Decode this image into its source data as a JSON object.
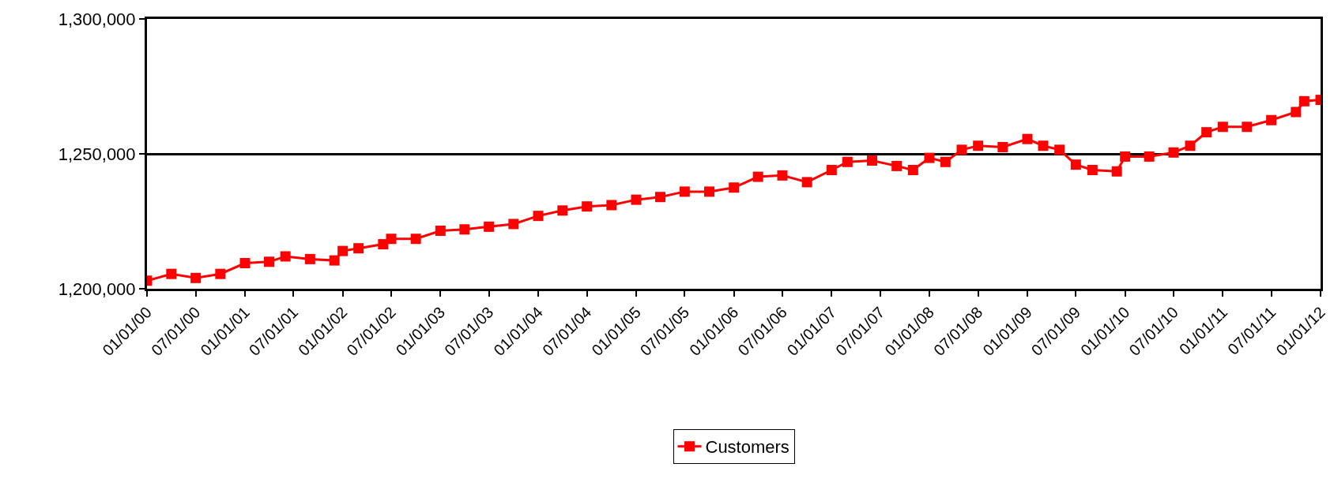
{
  "chart_data": {
    "type": "line",
    "x": [
      "2000-01-01",
      "2000-04-01",
      "2000-07-01",
      "2000-10-01",
      "2001-01-01",
      "2001-04-01",
      "2001-06-01",
      "2001-09-01",
      "2001-12-01",
      "2002-01-01",
      "2002-03-01",
      "2002-06-01",
      "2002-07-01",
      "2002-10-01",
      "2003-01-01",
      "2003-04-01",
      "2003-07-01",
      "2003-10-01",
      "2004-01-01",
      "2004-04-01",
      "2004-07-01",
      "2004-10-01",
      "2005-01-01",
      "2005-04-01",
      "2005-07-01",
      "2005-10-01",
      "2006-01-01",
      "2006-04-01",
      "2006-07-01",
      "2006-10-01",
      "2007-01-01",
      "2007-03-01",
      "2007-06-01",
      "2007-09-01",
      "2007-11-01",
      "2008-01-01",
      "2008-03-01",
      "2008-05-01",
      "2008-07-01",
      "2008-10-01",
      "2009-01-01",
      "2009-03-01",
      "2009-05-01",
      "2009-07-01",
      "2009-09-01",
      "2009-12-01",
      "2010-01-01",
      "2010-04-01",
      "2010-07-01",
      "2010-09-01",
      "2010-11-01",
      "2011-01-01",
      "2011-04-01",
      "2011-07-01",
      "2011-10-01",
      "2011-11-01",
      "2012-01-01"
    ],
    "series": [
      {
        "name": "Customers",
        "color": "#ff0000",
        "values": [
          1203000,
          1205500,
          1204000,
          1205500,
          1209500,
          1210000,
          1212000,
          1211000,
          1210500,
          1214000,
          1215000,
          1216500,
          1218500,
          1218500,
          1221500,
          1222000,
          1223000,
          1224000,
          1227000,
          1229000,
          1230500,
          1231000,
          1233000,
          1234000,
          1236000,
          1236000,
          1237500,
          1241500,
          1242000,
          1239500,
          1244000,
          1247000,
          1247500,
          1245500,
          1244000,
          1248500,
          1247000,
          1251500,
          1253000,
          1252500,
          1255500,
          1253000,
          1251500,
          1246000,
          1244000,
          1243500,
          1249000,
          1249000,
          1250500,
          1253000,
          1258000,
          1260000,
          1260000,
          1262500,
          1265500,
          1269500,
          1270000
        ]
      }
    ],
    "xlim": [
      "2000-01-01",
      "2012-01-01"
    ],
    "xticks": [
      {
        "value": "2000-01-01",
        "label": "01/01/00"
      },
      {
        "value": "2000-07-01",
        "label": "07/01/00"
      },
      {
        "value": "2001-01-01",
        "label": "01/01/01"
      },
      {
        "value": "2001-07-01",
        "label": "07/01/01"
      },
      {
        "value": "2002-01-01",
        "label": "01/01/02"
      },
      {
        "value": "2002-07-01",
        "label": "07/01/02"
      },
      {
        "value": "2003-01-01",
        "label": "01/01/03"
      },
      {
        "value": "2003-07-01",
        "label": "07/01/03"
      },
      {
        "value": "2004-01-01",
        "label": "01/01/04"
      },
      {
        "value": "2004-07-01",
        "label": "07/01/04"
      },
      {
        "value": "2005-01-01",
        "label": "01/01/05"
      },
      {
        "value": "2005-07-01",
        "label": "07/01/05"
      },
      {
        "value": "2006-01-01",
        "label": "01/01/06"
      },
      {
        "value": "2006-07-01",
        "label": "07/01/06"
      },
      {
        "value": "2007-01-01",
        "label": "01/01/07"
      },
      {
        "value": "2007-07-01",
        "label": "07/01/07"
      },
      {
        "value": "2008-01-01",
        "label": "01/01/08"
      },
      {
        "value": "2008-07-01",
        "label": "07/01/08"
      },
      {
        "value": "2009-01-01",
        "label": "01/01/09"
      },
      {
        "value": "2009-07-01",
        "label": "07/01/09"
      },
      {
        "value": "2010-01-01",
        "label": "01/01/10"
      },
      {
        "value": "2010-07-01",
        "label": "07/01/10"
      },
      {
        "value": "2011-01-01",
        "label": "01/01/11"
      },
      {
        "value": "2011-07-01",
        "label": "07/01/11"
      },
      {
        "value": "2012-01-01",
        "label": "01/01/12"
      }
    ],
    "ylim": [
      1200000,
      1300000
    ],
    "yticks": [
      {
        "value": 1200000,
        "label": "1,200,000"
      },
      {
        "value": 1250000,
        "label": "1,250,000"
      },
      {
        "value": 1300000,
        "label": "1,300,000"
      }
    ],
    "grid": "y",
    "legend": "bottom",
    "marker": "square",
    "line_style": "solid"
  }
}
